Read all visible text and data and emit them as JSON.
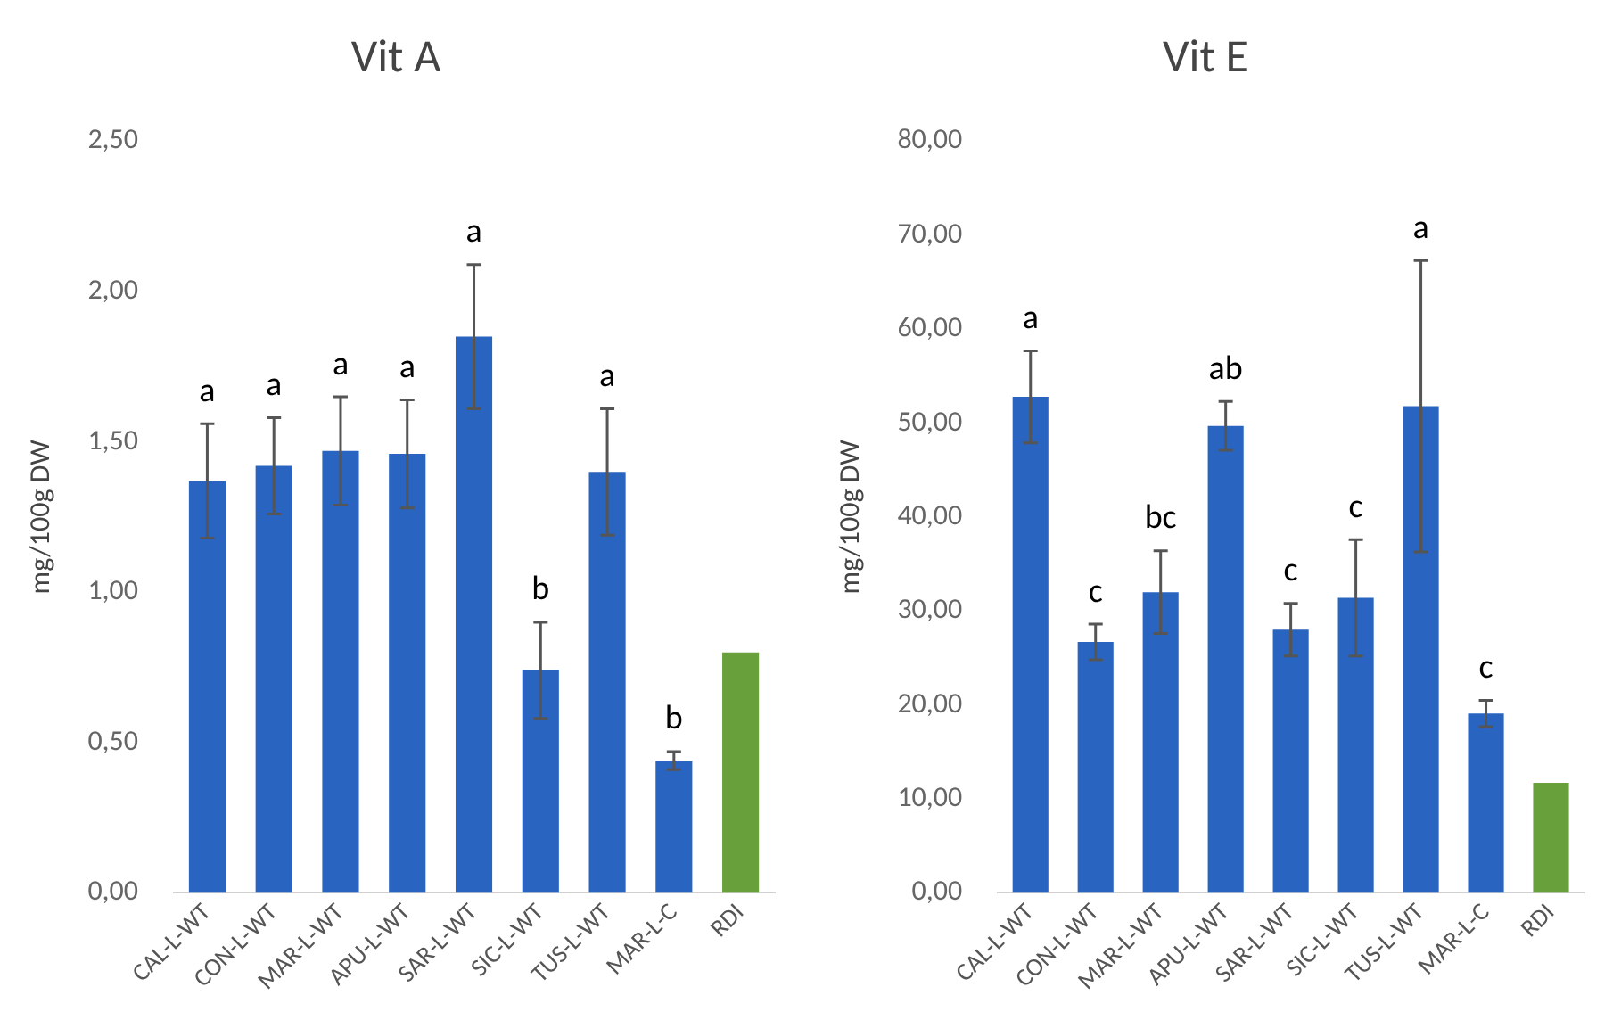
{
  "chart_data": [
    {
      "type": "bar",
      "title": "Vit A",
      "ylabel": "mg/100g DW",
      "categories": [
        "CAL-L-WT",
        "CON-L-WT",
        "MAR-L-WT",
        "APU-L-WT",
        "SAR-L-WT",
        "SIC-L-WT",
        "TUS-L-WT",
        "MAR-L-C",
        "RDI"
      ],
      "values": [
        1.37,
        1.42,
        1.47,
        1.46,
        1.85,
        0.74,
        1.4,
        0.44,
        0.8
      ],
      "errors": [
        0.19,
        0.16,
        0.18,
        0.18,
        0.24,
        0.16,
        0.21,
        0.03,
        null
      ],
      "colors": [
        "#2864c0",
        "#2864c0",
        "#2864c0",
        "#2864c0",
        "#2864c0",
        "#2864c0",
        "#2864c0",
        "#2864c0",
        "#68a03c"
      ],
      "ylim": [
        0,
        2.5
      ],
      "yticks": [
        {
          "value": 0,
          "label": "0,00"
        },
        {
          "value": 0.5,
          "label": "0,50"
        },
        {
          "value": 1,
          "label": "1,00"
        },
        {
          "value": 1.5,
          "label": "1,50"
        },
        {
          "value": 2,
          "label": "2,00"
        },
        {
          "value": 2.5,
          "label": "2,50"
        }
      ],
      "annotations": [
        {
          "text": "a",
          "x": "CAL-L-WT",
          "y": 1.56
        },
        {
          "text": "a",
          "x": "CON-L-WT",
          "y": 1.58
        },
        {
          "text": "a",
          "x": "MAR-L-WT",
          "y": 1.65
        },
        {
          "text": "a",
          "x": "APU-L-WT",
          "y": 1.64
        },
        {
          "text": "a",
          "x": "SAR-L-WT",
          "y": 2.09
        },
        {
          "text": "b",
          "x": "SIC-L-WT",
          "y": 0.9
        },
        {
          "text": "a",
          "x": "TUS-L-WT",
          "y": 1.61
        },
        {
          "text": "b",
          "x": "MAR-L-C",
          "y": 0.47
        }
      ]
    },
    {
      "type": "bar",
      "title": "Vit E",
      "ylabel": "mg/100g DW",
      "categories": [
        "CAL-L-WT",
        "CON-L-WT",
        "MAR-L-WT",
        "APU-L-WT",
        "SAR-L-WT",
        "SIC-L-WT",
        "TUS-L-WT",
        "MAR-L-C",
        "RDI"
      ],
      "values": [
        52.8,
        26.7,
        32.0,
        49.7,
        28.0,
        31.4,
        51.8,
        19.1,
        11.7
      ],
      "errors": [
        4.9,
        1.9,
        4.4,
        2.6,
        2.8,
        6.2,
        15.5,
        1.4,
        null
      ],
      "colors": [
        "#2864c0",
        "#2864c0",
        "#2864c0",
        "#2864c0",
        "#2864c0",
        "#2864c0",
        "#2864c0",
        "#2864c0",
        "#68a03c"
      ],
      "ylim": [
        0,
        80
      ],
      "yticks": [
        {
          "value": 0,
          "label": "0,00"
        },
        {
          "value": 10,
          "label": "10,00"
        },
        {
          "value": 20,
          "label": "20,00"
        },
        {
          "value": 30,
          "label": "30,00"
        },
        {
          "value": 40,
          "label": "40,00"
        },
        {
          "value": 50,
          "label": "50,00"
        },
        {
          "value": 60,
          "label": "60,00"
        },
        {
          "value": 70,
          "label": "70,00"
        },
        {
          "value": 80,
          "label": "80,00"
        }
      ],
      "annotations": [
        {
          "text": "a",
          "x": "CAL-L-WT",
          "y": 57.7
        },
        {
          "text": "c",
          "x": "CON-L-WT",
          "y": 28.6
        },
        {
          "text": "bc",
          "x": "MAR-L-WT",
          "y": 36.4
        },
        {
          "text": "ab",
          "x": "APU-L-WT",
          "y": 52.3
        },
        {
          "text": "c",
          "x": "SAR-L-WT",
          "y": 30.8
        },
        {
          "text": "c",
          "x": "SIC-L-WT",
          "y": 37.6
        },
        {
          "text": "a",
          "x": "TUS-L-WT",
          "y": 67.3
        },
        {
          "text": "c",
          "x": "MAR-L-C",
          "y": 20.5
        }
      ]
    }
  ]
}
